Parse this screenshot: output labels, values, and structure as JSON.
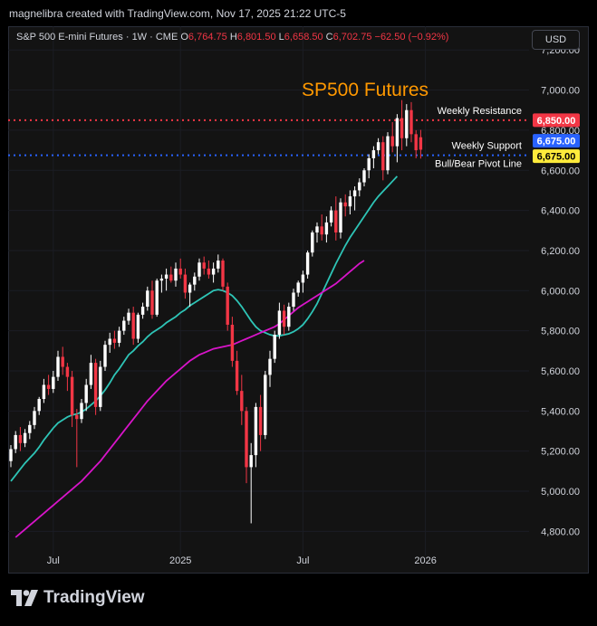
{
  "header": {
    "credit": "magnelibra created with TradingView.com, Nov 17, 2025 21:22 UTC-5"
  },
  "legend": {
    "symbol": "S&P 500 E-mini Futures · 1W · CME",
    "o_label": "O",
    "o_value": "6,764.75",
    "h_label": "H",
    "h_value": "6,801.50",
    "l_label": "L",
    "l_value": "6,658.50",
    "c_label": "C",
    "c_value": "6,702.75",
    "change": "−62.50 (−0.92%)"
  },
  "currency_button": "USD",
  "branding": {
    "name": "TradingView"
  },
  "colors": {
    "up": "#ffffff",
    "down": "#f23645",
    "ma_fast": "#2ec4b6",
    "ma_slow": "#d814c9",
    "resistance": "#f23645",
    "support": "#2962ff",
    "pivot_badge": "#ffeb3b",
    "title": "#ff9800"
  },
  "chart_data": {
    "type": "candlestick",
    "title": "SP500 Futures",
    "y_ticks": [
      "4,800.00",
      "5,000.00",
      "5,200.00",
      "5,400.00",
      "5,600.00",
      "5,800.00",
      "6,000.00",
      "6,200.00",
      "6,400.00",
      "6,600.00",
      "6,800.00",
      "7,000.00",
      "7,200.00"
    ],
    "x_ticks": [
      "Jul",
      "2025",
      "Jul",
      "2026"
    ],
    "ylim": [
      4770,
      7210
    ],
    "levels": [
      {
        "name": "Weekly Resistance",
        "value": 6850,
        "label": "6,850.00",
        "style": "dotted",
        "color": "#f23645"
      },
      {
        "name": "Weekly Support",
        "value": 6675,
        "label": "6,675.00",
        "style": "dotted",
        "color": "#2962ff"
      },
      {
        "name": "Bull/Bear Pivot Line",
        "value": 6675,
        "label": "6,675.00",
        "style": "none",
        "color": "#ffeb3b"
      }
    ],
    "candles_ohlc": [
      [
        5150,
        5230,
        5120,
        5210
      ],
      [
        5210,
        5300,
        5190,
        5280
      ],
      [
        5280,
        5320,
        5200,
        5240
      ],
      [
        5240,
        5310,
        5220,
        5290
      ],
      [
        5290,
        5350,
        5260,
        5330
      ],
      [
        5330,
        5420,
        5310,
        5400
      ],
      [
        5400,
        5470,
        5380,
        5460
      ],
      [
        5460,
        5560,
        5440,
        5530
      ],
      [
        5530,
        5580,
        5480,
        5510
      ],
      [
        5510,
        5600,
        5490,
        5570
      ],
      [
        5570,
        5700,
        5550,
        5670
      ],
      [
        5670,
        5720,
        5580,
        5620
      ],
      [
        5620,
        5640,
        5500,
        5570
      ],
      [
        5570,
        5600,
        5320,
        5380
      ],
      [
        5380,
        5410,
        5120,
        5360
      ],
      [
        5360,
        5460,
        5340,
        5440
      ],
      [
        5440,
        5560,
        5400,
        5530
      ],
      [
        5530,
        5680,
        5510,
        5640
      ],
      [
        5640,
        5660,
        5380,
        5420
      ],
      [
        5420,
        5650,
        5400,
        5620
      ],
      [
        5620,
        5750,
        5600,
        5730
      ],
      [
        5730,
        5790,
        5690,
        5760
      ],
      [
        5760,
        5800,
        5710,
        5740
      ],
      [
        5740,
        5820,
        5720,
        5800
      ],
      [
        5800,
        5870,
        5780,
        5850
      ],
      [
        5850,
        5910,
        5830,
        5890
      ],
      [
        5890,
        5920,
        5730,
        5760
      ],
      [
        5760,
        5890,
        5740,
        5880
      ],
      [
        5880,
        5940,
        5860,
        5920
      ],
      [
        5920,
        6020,
        5900,
        6000
      ],
      [
        6000,
        6050,
        5860,
        5880
      ],
      [
        5880,
        6060,
        5870,
        6050
      ],
      [
        6050,
        6080,
        5990,
        6060
      ],
      [
        6060,
        6110,
        6000,
        6080
      ],
      [
        6080,
        6120,
        6040,
        6050
      ],
      [
        6050,
        6140,
        6020,
        6110
      ],
      [
        6110,
        6160,
        6060,
        6080
      ],
      [
        6080,
        6110,
        5960,
        5990
      ],
      [
        5990,
        6040,
        5920,
        6030
      ],
      [
        6030,
        6090,
        6000,
        6070
      ],
      [
        6070,
        6160,
        6050,
        6140
      ],
      [
        6140,
        6170,
        6080,
        6110
      ],
      [
        6110,
        6150,
        6060,
        6080
      ],
      [
        6080,
        6140,
        6040,
        6110
      ],
      [
        6110,
        6180,
        6090,
        6150
      ],
      [
        6150,
        6160,
        6000,
        6020
      ],
      [
        6020,
        6040,
        5800,
        5830
      ],
      [
        5830,
        5870,
        5620,
        5650
      ],
      [
        5650,
        5700,
        5480,
        5500
      ],
      [
        5500,
        5580,
        5330,
        5400
      ],
      [
        5400,
        5420,
        5040,
        5120
      ],
      [
        5120,
        5240,
        4840,
        5180
      ],
      [
        5180,
        5440,
        5120,
        5420
      ],
      [
        5420,
        5480,
        5200,
        5280
      ],
      [
        5280,
        5600,
        5260,
        5580
      ],
      [
        5580,
        5700,
        5520,
        5660
      ],
      [
        5660,
        5800,
        5640,
        5780
      ],
      [
        5780,
        5940,
        5760,
        5900
      ],
      [
        5900,
        5930,
        5780,
        5820
      ],
      [
        5820,
        5940,
        5800,
        5920
      ],
      [
        5920,
        6010,
        5900,
        5990
      ],
      [
        5990,
        6050,
        5970,
        6040
      ],
      [
        6040,
        6100,
        5990,
        6080
      ],
      [
        6080,
        6200,
        6060,
        6190
      ],
      [
        6190,
        6300,
        6170,
        6290
      ],
      [
        6290,
        6340,
        6240,
        6320
      ],
      [
        6320,
        6380,
        6250,
        6280
      ],
      [
        6280,
        6370,
        6240,
        6340
      ],
      [
        6340,
        6420,
        6320,
        6400
      ],
      [
        6400,
        6470,
        6250,
        6290
      ],
      [
        6290,
        6460,
        6260,
        6440
      ],
      [
        6440,
        6480,
        6370,
        6420
      ],
      [
        6420,
        6500,
        6380,
        6470
      ],
      [
        6470,
        6520,
        6400,
        6500
      ],
      [
        6500,
        6560,
        6470,
        6540
      ],
      [
        6540,
        6610,
        6520,
        6600
      ],
      [
        6600,
        6680,
        6560,
        6660
      ],
      [
        6660,
        6720,
        6610,
        6700
      ],
      [
        6700,
        6760,
        6680,
        6740
      ],
      [
        6740,
        6770,
        6550,
        6600
      ],
      [
        6600,
        6790,
        6580,
        6770
      ],
      [
        6770,
        6840,
        6690,
        6720
      ],
      [
        6720,
        6880,
        6640,
        6860
      ],
      [
        6860,
        6950,
        6700,
        6760
      ],
      [
        6760,
        6930,
        6720,
        6900
      ],
      [
        6900,
        6940,
        6740,
        6780
      ],
      [
        6780,
        6800,
        6660,
        6700
      ],
      [
        6764.75,
        6801.5,
        6658.5,
        6702.75
      ]
    ],
    "ma_fast": {
      "start_index": 0,
      "values": [
        5050,
        5080,
        5110,
        5140,
        5165,
        5190,
        5220,
        5255,
        5285,
        5315,
        5340,
        5355,
        5370,
        5380,
        5385,
        5395,
        5410,
        5430,
        5450,
        5475,
        5505,
        5540,
        5580,
        5610,
        5645,
        5680,
        5700,
        5725,
        5745,
        5770,
        5790,
        5805,
        5820,
        5840,
        5855,
        5870,
        5890,
        5905,
        5925,
        5940,
        5955,
        5970,
        5985,
        6000,
        6005,
        6000,
        5990,
        5975,
        5950,
        5920,
        5885,
        5850,
        5820,
        5800,
        5790,
        5780,
        5775,
        5775,
        5780,
        5785,
        5795,
        5810,
        5830,
        5860,
        5895,
        5935,
        5985,
        6035,
        6085,
        6135,
        6180,
        6225,
        6265,
        6300,
        6335,
        6370,
        6405,
        6440,
        6470,
        6495,
        6520,
        6545,
        6570
      ]
    },
    "ma_slow": {
      "start_index": 1,
      "values": [
        4770,
        4790,
        4810,
        4830,
        4850,
        4870,
        4890,
        4910,
        4930,
        4950,
        4970,
        4990,
        5010,
        5030,
        5050,
        5075,
        5100,
        5125,
        5150,
        5180,
        5210,
        5240,
        5270,
        5300,
        5330,
        5360,
        5390,
        5420,
        5450,
        5475,
        5500,
        5525,
        5550,
        5570,
        5590,
        5610,
        5630,
        5650,
        5665,
        5680,
        5690,
        5700,
        5710,
        5715,
        5720,
        5725,
        5730,
        5740,
        5750,
        5760,
        5770,
        5780,
        5790,
        5800,
        5810,
        5820,
        5835,
        5855,
        5875,
        5895,
        5915,
        5930,
        5945,
        5960,
        5975,
        5990,
        6005,
        6020,
        6035,
        6055,
        6075,
        6095,
        6115,
        6135,
        6150
      ]
    }
  }
}
